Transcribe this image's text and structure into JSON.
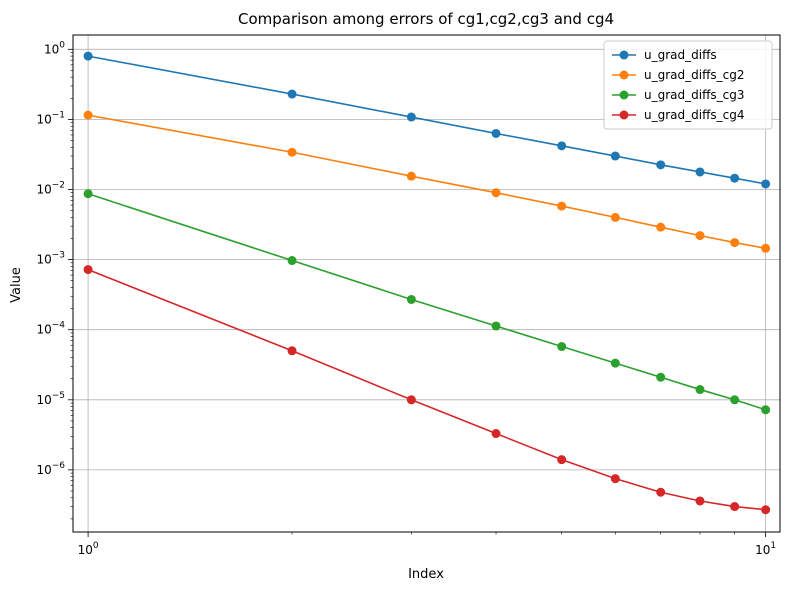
{
  "chart_data": {
    "type": "line",
    "title": "Comparison among errors of cg1,cg2,cg3 and cg4",
    "xlabel": "Index",
    "ylabel": "Value",
    "xscale": "log",
    "yscale": "log",
    "xlim": [
      0.95,
      10.5
    ],
    "ylim": [
      1.3e-07,
      1.6
    ],
    "grid": true,
    "legend_position": "top-right",
    "x": [
      1,
      2,
      3,
      4,
      5,
      6,
      7,
      8,
      9,
      10
    ],
    "x_ticks": [
      {
        "value": 1,
        "base": "10",
        "exp": "0"
      },
      {
        "value": 10,
        "base": "10",
        "exp": "1"
      }
    ],
    "y_ticks": [
      {
        "value": 1,
        "base": "10",
        "exp": "0"
      },
      {
        "value": 0.1,
        "base": "10",
        "exp": "−1"
      },
      {
        "value": 0.01,
        "base": "10",
        "exp": "−2"
      },
      {
        "value": 0.001,
        "base": "10",
        "exp": "−3"
      },
      {
        "value": 0.0001,
        "base": "10",
        "exp": "−4"
      },
      {
        "value": 1e-05,
        "base": "10",
        "exp": "−5"
      },
      {
        "value": 1e-06,
        "base": "10",
        "exp": "−6"
      }
    ],
    "series": [
      {
        "name": "u_grad_diffs",
        "color": "#1f77b4",
        "values": [
          0.8,
          0.23,
          0.108,
          0.063,
          0.042,
          0.03,
          0.0225,
          0.0178,
          0.0145,
          0.012
        ]
      },
      {
        "name": "u_grad_diffs_cg2",
        "color": "#ff7f0e",
        "values": [
          0.115,
          0.034,
          0.0155,
          0.009,
          0.0058,
          0.004,
          0.0029,
          0.0022,
          0.00175,
          0.00145
        ]
      },
      {
        "name": "u_grad_diffs_cg3",
        "color": "#2ca02c",
        "values": [
          0.0087,
          0.00097,
          0.00027,
          0.000113,
          5.75e-05,
          3.33e-05,
          2.1e-05,
          1.4e-05,
          1e-05,
          7.2e-06
        ]
      },
      {
        "name": "u_grad_diffs_cg4",
        "color": "#d62728",
        "values": [
          0.00072,
          5e-05,
          1e-05,
          3.3e-06,
          1.4e-06,
          7.5e-07,
          4.8e-07,
          3.6e-07,
          3e-07,
          2.7e-07
        ]
      }
    ]
  }
}
